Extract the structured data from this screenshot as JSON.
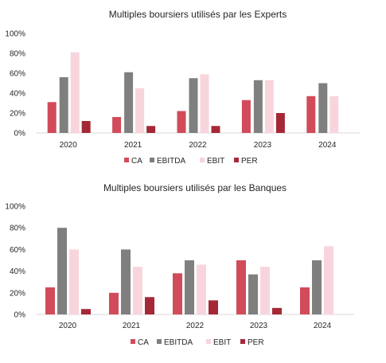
{
  "chart_data": [
    {
      "type": "bar",
      "title": "Multiples boursiers utilisés par les Experts",
      "categories": [
        "2020",
        "2021",
        "2022",
        "2023",
        "2024"
      ],
      "series": [
        {
          "name": "CA",
          "color": "#d14b5a",
          "values": [
            31,
            16,
            22,
            33,
            37
          ]
        },
        {
          "name": "EBITDA",
          "color": "#7f7f7f",
          "values": [
            56,
            61,
            55,
            53,
            50
          ]
        },
        {
          "name": "EBIT",
          "color": "#f8d5dc",
          "values": [
            81,
            45,
            59,
            53,
            37
          ]
        },
        {
          "name": "PER",
          "color": "#a52836",
          "values": [
            12,
            7,
            7,
            20,
            0
          ]
        }
      ],
      "ylim": [
        0,
        100
      ],
      "yticks": [
        "0%",
        "20%",
        "40%",
        "60%",
        "80%",
        "100%"
      ],
      "xlabel": "",
      "ylabel": "",
      "grid": false,
      "legend": "bottom"
    },
    {
      "type": "bar",
      "title": "Multiples boursiers utilisés par les Banques",
      "categories": [
        "2020",
        "2021",
        "2022",
        "2023",
        "2024"
      ],
      "series": [
        {
          "name": "CA",
          "color": "#d14b5a",
          "values": [
            25,
            20,
            38,
            50,
            25
          ]
        },
        {
          "name": "EBITDA",
          "color": "#7f7f7f",
          "values": [
            80,
            60,
            50,
            37,
            50
          ]
        },
        {
          "name": "EBIT",
          "color": "#f8d5dc",
          "values": [
            60,
            44,
            46,
            44,
            63
          ]
        },
        {
          "name": "PER",
          "color": "#a52836",
          "values": [
            5,
            16,
            13,
            6,
            0
          ]
        }
      ],
      "ylim": [
        0,
        100
      ],
      "yticks": [
        "0%",
        "20%",
        "40%",
        "60%",
        "80%",
        "100%"
      ],
      "xlabel": "",
      "ylabel": "",
      "grid": false,
      "legend": "bottom"
    }
  ]
}
